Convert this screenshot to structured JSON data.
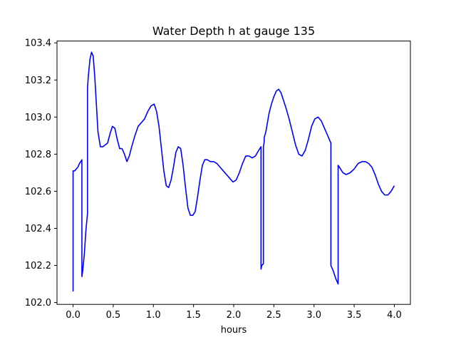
{
  "chart_data": {
    "type": "line",
    "title": "Water Depth h at gauge 135",
    "xlabel": "hours",
    "ylabel": "",
    "xlim": [
      -0.2,
      4.2
    ],
    "ylim": [
      101.99,
      103.41
    ],
    "xticks": [
      0.0,
      0.5,
      1.0,
      1.5,
      2.0,
      2.5,
      3.0,
      3.5,
      4.0
    ],
    "xtick_labels": [
      "0.0",
      "0.5",
      "1.0",
      "1.5",
      "2.0",
      "2.5",
      "3.0",
      "3.5",
      "4.0"
    ],
    "yticks": [
      102.0,
      102.2,
      102.4,
      102.6,
      102.8,
      103.0,
      103.2,
      103.4
    ],
    "ytick_labels": [
      "102.0",
      "102.2",
      "102.4",
      "102.6",
      "102.8",
      "103.0",
      "103.2",
      "103.4"
    ],
    "grid": false,
    "series": [
      {
        "color": "#0000ff",
        "x": [
          0.0,
          0.0,
          0.02,
          0.04,
          0.06,
          0.08,
          0.11,
          0.11,
          0.12,
          0.14,
          0.16,
          0.18,
          0.18,
          0.19,
          0.21,
          0.23,
          0.25,
          0.27,
          0.29,
          0.31,
          0.34,
          0.37,
          0.4,
          0.43,
          0.46,
          0.49,
          0.52,
          0.55,
          0.58,
          0.61,
          0.64,
          0.67,
          0.7,
          0.73,
          0.77,
          0.81,
          0.85,
          0.89,
          0.93,
          0.97,
          1.01,
          1.04,
          1.07,
          1.1,
          1.13,
          1.16,
          1.19,
          1.22,
          1.25,
          1.28,
          1.31,
          1.34,
          1.37,
          1.4,
          1.43,
          1.46,
          1.49,
          1.52,
          1.55,
          1.58,
          1.61,
          1.64,
          1.67,
          1.71,
          1.75,
          1.79,
          1.83,
          1.87,
          1.91,
          1.95,
          1.99,
          2.03,
          2.07,
          2.11,
          2.15,
          2.19,
          2.23,
          2.27,
          2.31,
          2.34,
          2.34,
          2.35,
          2.37,
          2.37,
          2.38,
          2.38,
          2.4,
          2.42,
          2.44,
          2.47,
          2.5,
          2.53,
          2.56,
          2.59,
          2.62,
          2.65,
          2.69,
          2.73,
          2.77,
          2.81,
          2.85,
          2.89,
          2.93,
          2.97,
          3.01,
          3.05,
          3.09,
          3.13,
          3.17,
          3.21,
          3.21,
          3.24,
          3.27,
          3.3,
          3.3,
          3.33,
          3.36,
          3.4,
          3.45,
          3.5,
          3.55,
          3.6,
          3.64,
          3.68,
          3.72,
          3.76,
          3.8,
          3.84,
          3.88,
          3.92,
          3.96,
          4.0
        ],
        "y": [
          102.06,
          102.71,
          102.71,
          102.72,
          102.73,
          102.75,
          102.77,
          102.14,
          102.17,
          102.26,
          102.39,
          102.48,
          103.16,
          103.22,
          103.31,
          103.35,
          103.33,
          103.22,
          103.07,
          102.92,
          102.84,
          102.84,
          102.85,
          102.86,
          102.91,
          102.95,
          102.94,
          102.88,
          102.83,
          102.83,
          102.8,
          102.76,
          102.79,
          102.84,
          102.9,
          102.95,
          102.97,
          102.99,
          103.03,
          103.06,
          103.07,
          103.03,
          102.95,
          102.83,
          102.71,
          102.63,
          102.62,
          102.66,
          102.73,
          102.81,
          102.84,
          102.83,
          102.74,
          102.62,
          102.51,
          102.47,
          102.47,
          102.49,
          102.57,
          102.66,
          102.74,
          102.77,
          102.77,
          102.76,
          102.76,
          102.75,
          102.73,
          102.71,
          102.69,
          102.67,
          102.65,
          102.66,
          102.7,
          102.75,
          102.79,
          102.79,
          102.78,
          102.79,
          102.82,
          102.84,
          102.18,
          102.2,
          102.21,
          102.84,
          102.87,
          102.89,
          102.92,
          102.97,
          103.02,
          103.07,
          103.11,
          103.14,
          103.15,
          103.13,
          103.09,
          103.05,
          102.99,
          102.92,
          102.85,
          102.8,
          102.79,
          102.82,
          102.88,
          102.95,
          102.99,
          103.0,
          102.98,
          102.94,
          102.9,
          102.86,
          102.2,
          102.17,
          102.13,
          102.1,
          102.74,
          102.72,
          102.7,
          102.69,
          102.7,
          102.72,
          102.75,
          102.76,
          102.76,
          102.75,
          102.73,
          102.69,
          102.64,
          102.6,
          102.58,
          102.58,
          102.6,
          102.63
        ]
      }
    ]
  }
}
